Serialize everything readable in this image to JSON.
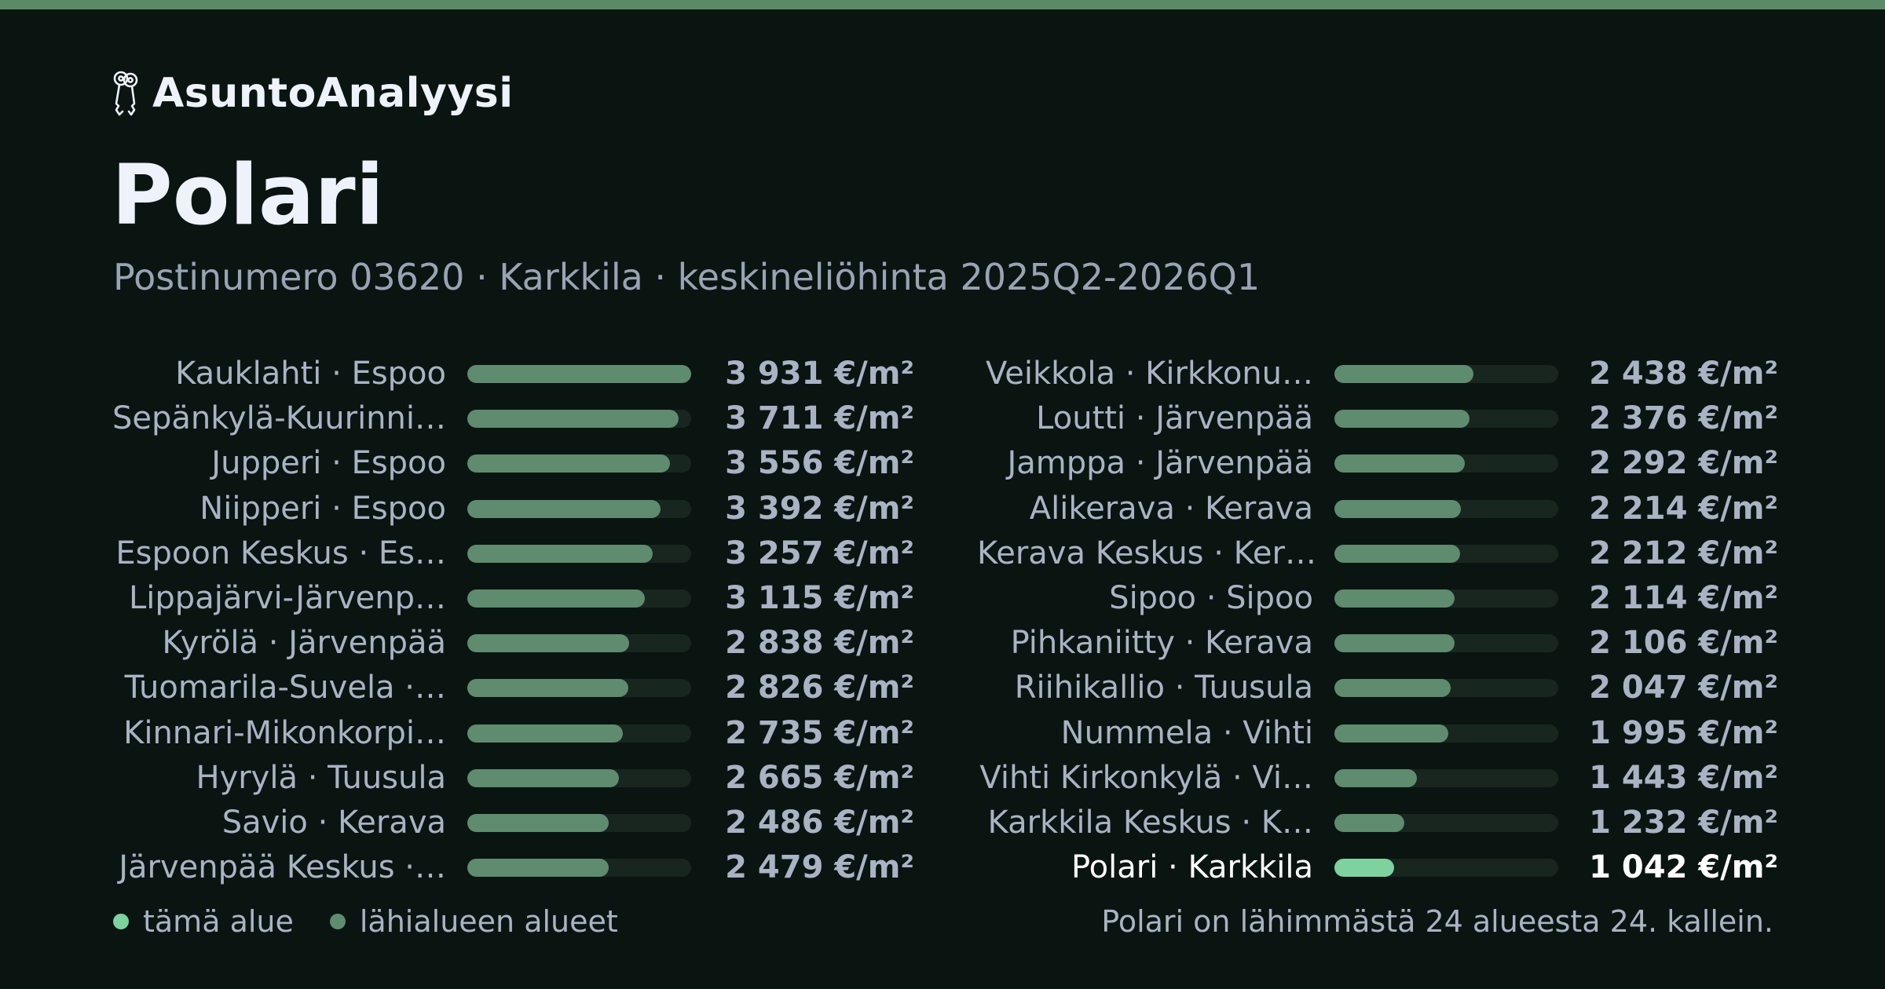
{
  "brand": {
    "name": "AsuntoAnalyysi",
    "icon": "keys-icon"
  },
  "header": {
    "title": "Polari",
    "subtitle": "Postinumero 03620 · Karkkila · keskineliöhinta 2025Q2-2026Q1"
  },
  "colors": {
    "background": "#0a1512",
    "accent_bar": "#5a8a66",
    "bar": "#5f8b6e",
    "bar_highlight": "#7ed29e",
    "track": "#19251f"
  },
  "chart_data": {
    "type": "bar",
    "orientation": "horizontal",
    "unit": "€/m²",
    "xlim": [
      0,
      3931
    ],
    "grid": false,
    "highlight": "Polari · Karkkila",
    "columns": [
      {
        "categories": [
          "Kauklahti · Espoo",
          "Sepänkylä-Kuurinni…",
          "Jupperi · Espoo",
          "Niipperi · Espoo",
          "Espoon Keskus · Es…",
          "Lippajärvi-Järvenp…",
          "Kyrölä · Järvenpää",
          "Tuomarila-Suvela ·…",
          "Kinnari-Mikonkorpi…",
          "Hyrylä · Tuusula",
          "Savio · Kerava",
          "Järvenpää Keskus ·…"
        ],
        "values": [
          3931,
          3711,
          3556,
          3392,
          3257,
          3115,
          2838,
          2826,
          2735,
          2665,
          2486,
          2479
        ],
        "labels": [
          "3 931 €/m²",
          "3 711 €/m²",
          "3 556 €/m²",
          "3 392 €/m²",
          "3 257 €/m²",
          "3 115 €/m²",
          "2 838 €/m²",
          "2 826 €/m²",
          "2 735 €/m²",
          "2 665 €/m²",
          "2 486 €/m²",
          "2 479 €/m²"
        ]
      },
      {
        "categories": [
          "Veikkola · Kirkkonu…",
          "Loutti · Järvenpää",
          "Jamppa · Järvenpää",
          "Alikerava · Kerava",
          "Kerava Keskus · Ker…",
          "Sipoo · Sipoo",
          "Pihkaniitty · Kerava",
          "Riihikallio · Tuusula",
          "Nummela · Vihti",
          "Vihti Kirkonkylä · Vi…",
          "Karkkila Keskus · K…",
          "Polari · Karkkila"
        ],
        "values": [
          2438,
          2376,
          2292,
          2214,
          2212,
          2114,
          2106,
          2047,
          1995,
          1443,
          1232,
          1042
        ],
        "labels": [
          "2 438 €/m²",
          "2 376 €/m²",
          "2 292 €/m²",
          "2 214 €/m²",
          "2 212 €/m²",
          "2 114 €/m²",
          "2 106 €/m²",
          "2 047 €/m²",
          "1 995 €/m²",
          "1 443 €/m²",
          "1 232 €/m²",
          "1 042 €/m²"
        ]
      }
    ]
  },
  "legend": {
    "this_area": "tämä alue",
    "nearby": "lähialueen alueet"
  },
  "footnote": "Polari on lähimmästä 24 alueesta 24. kallein."
}
